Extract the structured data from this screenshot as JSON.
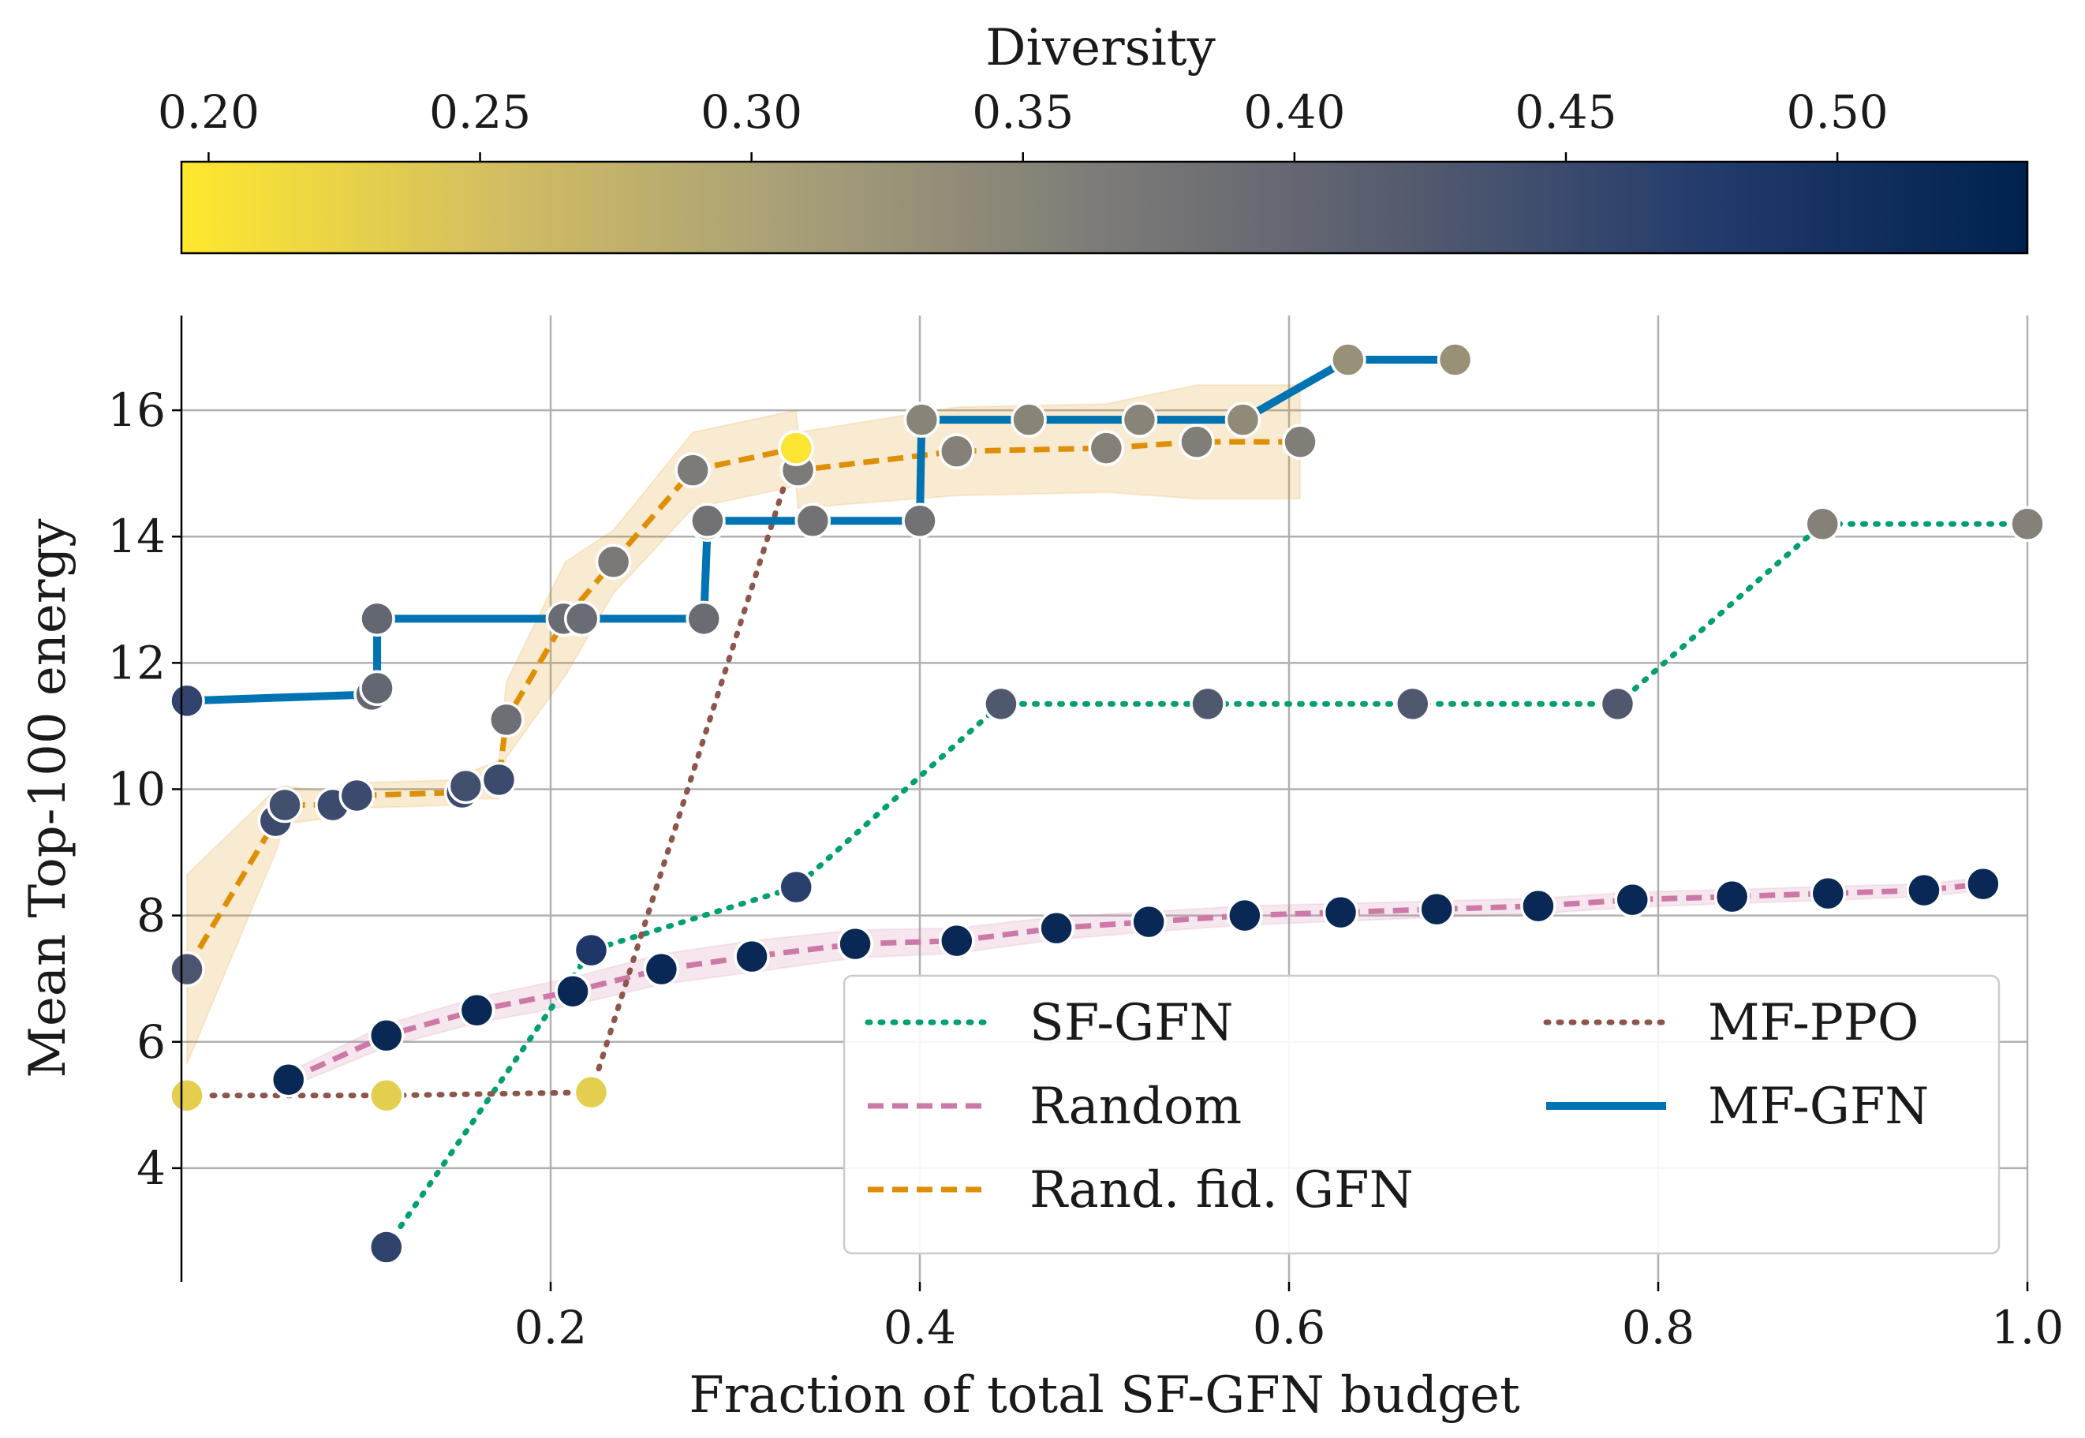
{
  "colors": {
    "sf_gfn": "#009E73",
    "random": "#CC79A7",
    "rand_fid_gfn": "#DE8F05",
    "mf_ppo": "#8C564B",
    "mf_gfn": "#0173B2",
    "cmap": [
      "#FFE82D",
      "#D3BE62",
      "#A89F78",
      "#7D7B78",
      "#535A6E",
      "#223A6C",
      "#00224E"
    ]
  },
  "chart_data": {
    "type": "line",
    "xlabel": "Fraction of total SF-GFN budget",
    "ylabel": "Mean Top-100 energy",
    "xlim": [
      0.0,
      1.0
    ],
    "ylim": [
      2.2,
      17.5
    ],
    "xticks": [
      0.2,
      0.4,
      0.6,
      0.8,
      1.0
    ],
    "xtick_labels": [
      "0.2",
      "0.4",
      "0.6",
      "0.8",
      "1.0"
    ],
    "yticks": [
      4,
      6,
      8,
      10,
      12,
      14,
      16
    ],
    "ytick_labels": [
      "4",
      "6",
      "8",
      "10",
      "12",
      "14",
      "16"
    ],
    "grid": true,
    "legend_position": "bottom-right",
    "colorbar": {
      "label": "Diversity",
      "range": [
        0.195,
        0.535
      ],
      "ticks": [
        0.2,
        0.25,
        0.3,
        0.35,
        0.4,
        0.45,
        0.5
      ],
      "tick_labels": [
        "0.20",
        "0.25",
        "0.30",
        "0.35",
        "0.40",
        "0.45",
        "0.50"
      ],
      "position": "top"
    },
    "series": [
      {
        "name": "SF-GFN",
        "key": "sf_gfn",
        "style": "dotted",
        "x": [
          0.111,
          0.222,
          0.333,
          0.444,
          0.556,
          0.667,
          0.778,
          0.889,
          1.0
        ],
        "y": [
          2.75,
          7.45,
          8.45,
          11.35,
          11.35,
          11.35,
          11.35,
          14.2,
          14.2
        ],
        "diversity": [
          0.465,
          0.485,
          0.47,
          0.425,
          0.425,
          0.425,
          0.425,
          0.355,
          0.355
        ]
      },
      {
        "name": "Random",
        "key": "random",
        "style": "dashed",
        "x": [
          0.058,
          0.111,
          0.16,
          0.212,
          0.26,
          0.309,
          0.365,
          0.42,
          0.474,
          0.524,
          0.576,
          0.628,
          0.68,
          0.735,
          0.786,
          0.84,
          0.892,
          0.944,
          0.976
        ],
        "y": [
          5.4,
          6.1,
          6.5,
          6.8,
          7.15,
          7.35,
          7.55,
          7.6,
          7.8,
          7.9,
          8.0,
          8.05,
          8.1,
          8.15,
          8.25,
          8.3,
          8.35,
          8.4,
          8.5
        ],
        "band": [
          0.12,
          0.18,
          0.2,
          0.22,
          0.24,
          0.25,
          0.22,
          0.2,
          0.18,
          0.16,
          0.15,
          0.14,
          0.13,
          0.12,
          0.12,
          0.11,
          0.11,
          0.1,
          0.1
        ],
        "diversity": [
          0.52,
          0.52,
          0.52,
          0.52,
          0.52,
          0.52,
          0.52,
          0.52,
          0.52,
          0.52,
          0.52,
          0.52,
          0.52,
          0.52,
          0.52,
          0.52,
          0.52,
          0.52,
          0.52
        ]
      },
      {
        "name": "Rand. fid. GFN",
        "key": "rand_fid_gfn",
        "style": "dashed",
        "x": [
          0.003,
          0.051,
          0.056,
          0.082,
          0.095,
          0.152,
          0.154,
          0.172,
          0.176,
          0.208,
          0.234,
          0.277,
          0.333,
          0.334,
          0.42,
          0.501,
          0.55,
          0.606
        ],
        "y": [
          7.15,
          9.5,
          9.75,
          9.75,
          9.9,
          9.95,
          10.05,
          10.15,
          11.1,
          12.7,
          13.6,
          15.05,
          15.4,
          15.05,
          15.35,
          15.4,
          15.5,
          15.5
        ],
        "band": [
          1.5,
          0.5,
          0.3,
          0.2,
          0.2,
          0.2,
          0.2,
          0.3,
          0.6,
          0.9,
          0.5,
          0.6,
          0.6,
          0.6,
          0.7,
          0.7,
          0.9,
          0.9
        ],
        "diversity": [
          0.43,
          0.45,
          0.44,
          0.45,
          0.45,
          0.45,
          0.44,
          0.45,
          0.385,
          0.37,
          0.37,
          0.365,
          0.2,
          0.365,
          0.355,
          0.355,
          0.36,
          0.36
        ]
      },
      {
        "name": "MF-PPO",
        "key": "mf_ppo",
        "style": "dotted",
        "x": [
          0.003,
          0.111,
          0.222,
          0.333
        ],
        "y": [
          5.15,
          5.15,
          5.2,
          15.4
        ],
        "diversity": [
          0.23,
          0.23,
          0.23,
          0.2
        ]
      },
      {
        "name": "MF-GFN",
        "key": "mf_gfn",
        "style": "solid",
        "x": [
          0.003,
          0.103,
          0.106,
          0.106,
          0.207,
          0.217,
          0.283,
          0.285,
          0.285,
          0.342,
          0.4,
          0.401,
          0.459,
          0.519,
          0.575,
          0.632,
          0.69
        ],
        "y": [
          11.4,
          11.5,
          11.6,
          12.7,
          12.7,
          12.7,
          12.7,
          14.2,
          14.25,
          14.25,
          14.25,
          15.85,
          15.85,
          15.85,
          15.85,
          16.8,
          16.8
        ],
        "diversity": [
          0.46,
          0.4,
          0.4,
          0.4,
          0.39,
          0.39,
          0.39,
          0.38,
          0.38,
          0.38,
          0.38,
          0.35,
          0.35,
          0.35,
          0.34,
          0.33,
          0.33
        ]
      }
    ]
  }
}
